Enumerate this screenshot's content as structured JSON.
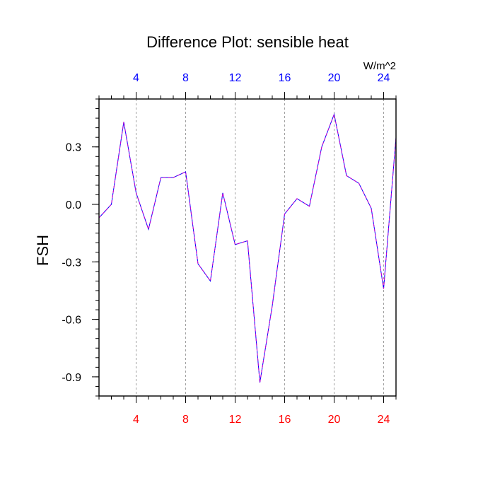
{
  "chart_data": {
    "type": "line",
    "title": "Difference Plot: sensible heat",
    "units": "W/m^2",
    "ylabel": "FSH",
    "xlabel": "",
    "xlim": [
      1,
      25
    ],
    "ylim": [
      -1.0,
      0.55
    ],
    "x_ticks": [
      "4",
      "8",
      "12",
      "16",
      "20",
      "24"
    ],
    "y_ticks": [
      "0.3",
      "0.0",
      "-0.3",
      "-0.6",
      "-0.9"
    ],
    "grid": "vertical-dashed",
    "colors": {
      "bottom_ticks": "#ff0000",
      "top_ticks": "#0000ff",
      "line_primary": "#0000ff",
      "line_secondary": "#cc00cc"
    },
    "series": [
      {
        "x": [
          1,
          2,
          3,
          4,
          5,
          6,
          7,
          8,
          9,
          10,
          11,
          12,
          13,
          14,
          15,
          16,
          17,
          18,
          19,
          20,
          21,
          22,
          23,
          24,
          25
        ],
        "values": [
          -0.07,
          0.0,
          0.43,
          0.06,
          -0.13,
          0.14,
          0.14,
          0.17,
          -0.31,
          -0.4,
          0.06,
          -0.21,
          -0.19,
          -0.93,
          -0.53,
          -0.05,
          0.03,
          -0.01,
          0.3,
          0.47,
          0.15,
          0.11,
          -0.02,
          -0.44,
          0.35
        ]
      }
    ]
  }
}
